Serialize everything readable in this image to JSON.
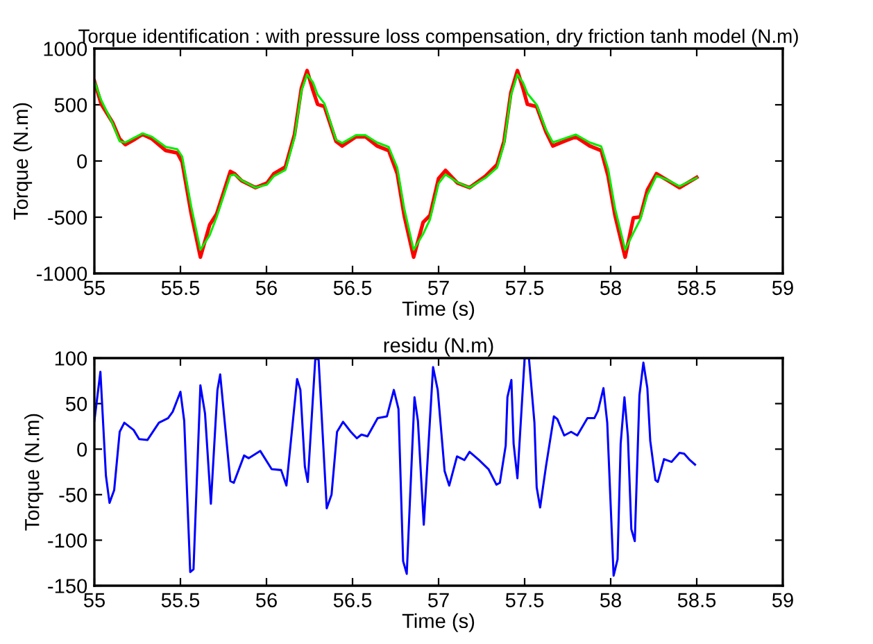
{
  "chart_data": [
    {
      "type": "line",
      "title": "Torque identification : with pressure loss compensation, dry friction tanh model (N.m)",
      "xlabel": "Time (s)",
      "ylabel": "Torque (N.m)",
      "xlim": [
        55,
        59
      ],
      "xticks": [
        55,
        55.5,
        56,
        56.5,
        57,
        57.5,
        58,
        58.5,
        59
      ],
      "ylim": [
        -1000,
        1000
      ],
      "yticks": [
        -1000,
        -500,
        0,
        500,
        1000
      ],
      "grid": false,
      "legend": false,
      "series": [
        {
          "color": "#ff0000",
          "x": [
            55.0,
            55.04,
            55.107,
            55.147,
            55.18,
            55.228,
            55.28,
            55.335,
            55.415,
            55.482,
            55.51,
            55.562,
            55.616,
            55.67,
            55.71,
            55.79,
            55.815,
            55.855,
            55.936,
            56.003,
            56.043,
            56.11,
            56.163,
            56.203,
            56.236,
            56.27,
            56.297,
            56.337,
            56.404,
            56.44,
            56.52,
            56.575,
            56.642,
            56.71,
            56.76,
            56.8,
            56.855,
            56.91,
            56.95,
            57.0,
            57.04,
            57.11,
            57.18,
            57.273,
            57.34,
            57.38,
            57.42,
            57.458,
            57.49,
            57.516,
            57.57,
            57.624,
            57.664,
            57.73,
            57.797,
            57.878,
            57.945,
            57.985,
            58.025,
            58.084,
            58.132,
            58.172,
            58.213,
            58.266,
            58.333,
            58.4,
            58.5
          ],
          "values": [
            711,
            505,
            340,
            196,
            146,
            187,
            237,
            196,
            93,
            72,
            -10,
            -464,
            -855,
            -567,
            -472,
            -93,
            -113,
            -175,
            -237,
            -196,
            -113,
            -52,
            237,
            649,
            804,
            628,
            505,
            484,
            175,
            134,
            216,
            216,
            134,
            93,
            -113,
            -484,
            -855,
            -546,
            -484,
            -155,
            -84,
            -196,
            -237,
            -134,
            -31,
            175,
            608,
            804,
            649,
            505,
            484,
            258,
            134,
            175,
            216,
            134,
            93,
            -134,
            -484,
            -855,
            -505,
            -497,
            -258,
            -113,
            -175,
            -237,
            -146
          ]
        },
        {
          "color": "#00ee00",
          "x": [
            55.0,
            55.04,
            55.107,
            55.147,
            55.18,
            55.228,
            55.28,
            55.335,
            55.415,
            55.482,
            55.51,
            55.562,
            55.616,
            55.67,
            55.71,
            55.79,
            55.815,
            55.855,
            55.936,
            56.003,
            56.043,
            56.11,
            56.163,
            56.203,
            56.236,
            56.27,
            56.297,
            56.337,
            56.404,
            56.44,
            56.52,
            56.575,
            56.642,
            56.71,
            56.76,
            56.8,
            56.855,
            56.91,
            56.95,
            57.0,
            57.04,
            57.11,
            57.18,
            57.273,
            57.34,
            57.38,
            57.42,
            57.458,
            57.49,
            57.516,
            57.57,
            57.624,
            57.664,
            57.73,
            57.797,
            57.878,
            57.945,
            57.985,
            58.025,
            58.084,
            58.132,
            58.172,
            58.213,
            58.266,
            58.333,
            58.4,
            58.5
          ],
          "values": [
            711,
            540,
            330,
            175,
            165,
            205,
            245,
            215,
            125,
            105,
            40,
            -400,
            -790,
            -660,
            -500,
            -130,
            -120,
            -170,
            -237,
            -210,
            -135,
            -80,
            210,
            620,
            770,
            700,
            590,
            510,
            190,
            160,
            230,
            230,
            165,
            125,
            -60,
            -420,
            -790,
            -650,
            -520,
            -200,
            -120,
            -190,
            -237,
            -150,
            -60,
            150,
            580,
            770,
            700,
            600,
            500,
            280,
            165,
            200,
            235,
            165,
            130,
            -70,
            -420,
            -790,
            -640,
            -520,
            -300,
            -130,
            -170,
            -225,
            -150
          ]
        }
      ]
    },
    {
      "type": "line",
      "title": "residu (N.m)",
      "xlabel": "Time (s)",
      "ylabel": "Torque (N.m)",
      "xlim": [
        55,
        59
      ],
      "xticks": [
        55,
        55.5,
        56,
        56.5,
        57,
        57.5,
        58,
        58.5,
        59
      ],
      "ylim": [
        -150,
        100
      ],
      "yticks": [
        -150,
        -100,
        -50,
        0,
        50,
        100
      ],
      "grid": false,
      "legend": false,
      "series": [
        {
          "color": "#0000ff",
          "x": [
            55.0,
            55.035,
            55.067,
            55.088,
            55.115,
            55.147,
            55.174,
            55.228,
            55.26,
            55.308,
            55.375,
            55.428,
            55.455,
            55.5,
            55.522,
            55.557,
            55.576,
            55.616,
            55.643,
            55.677,
            55.715,
            55.731,
            55.79,
            55.81,
            55.87,
            55.897,
            55.964,
            56.03,
            56.085,
            56.116,
            56.178,
            56.197,
            56.223,
            56.24,
            56.284,
            56.303,
            56.35,
            56.378,
            56.41,
            56.445,
            56.49,
            56.525,
            56.552,
            56.587,
            56.646,
            56.7,
            56.74,
            56.767,
            56.794,
            56.815,
            56.86,
            56.88,
            56.914,
            56.968,
            56.995,
            57.035,
            57.062,
            57.107,
            57.15,
            57.18,
            57.235,
            57.29,
            57.336,
            57.356,
            57.39,
            57.4,
            57.423,
            57.436,
            57.458,
            57.5,
            57.525,
            57.557,
            57.57,
            57.59,
            57.624,
            57.67,
            57.69,
            57.73,
            57.77,
            57.806,
            57.865,
            57.905,
            57.926,
            57.958,
            57.98,
            58.017,
            58.04,
            58.058,
            58.08,
            58.1,
            58.12,
            58.14,
            58.167,
            58.19,
            58.213,
            58.23,
            58.26,
            58.274,
            58.31,
            58.354,
            58.4,
            58.427,
            58.46,
            58.49
          ],
          "values": [
            31,
            85,
            -29,
            -59,
            -45,
            19,
            29,
            21,
            11,
            10,
            29,
            34,
            41,
            63,
            31,
            -135,
            -132,
            70,
            39,
            -60,
            65,
            82,
            -35,
            -37,
            -7,
            -10,
            -2,
            -22,
            -23,
            -40,
            77,
            65,
            -19,
            -36,
            100,
            98,
            -65,
            -50,
            19,
            30,
            19,
            12,
            16,
            14,
            34,
            36,
            65,
            44,
            -123,
            -137,
            57,
            31,
            -83,
            90,
            65,
            -24,
            -40,
            -8,
            -12,
            -3,
            -12,
            -22,
            -39,
            -37,
            4,
            57,
            76,
            6,
            -32,
            100,
            100,
            29,
            -42,
            -64,
            -19,
            36,
            33,
            15,
            19,
            15,
            34,
            34,
            42,
            67,
            29,
            -139,
            -121,
            6,
            57,
            14,
            -88,
            -101,
            59,
            95,
            67,
            9,
            -34,
            -36,
            -11,
            -14,
            -4,
            -5,
            -12,
            -17
          ]
        }
      ]
    }
  ]
}
